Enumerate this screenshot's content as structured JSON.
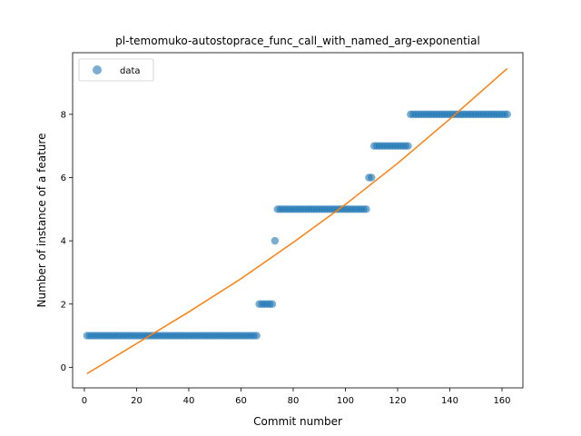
{
  "chart_data": {
    "type": "scatter",
    "title": "pl-temomuko-autostoprace_func_call_with_named_arg-exponential",
    "xlabel": "Commit number",
    "ylabel": "Number of instance of a feature",
    "xlim": [
      -4.5,
      168
    ],
    "ylim": [
      -0.65,
      9.95
    ],
    "xticks": [
      0,
      20,
      40,
      60,
      80,
      100,
      120,
      140,
      160
    ],
    "yticks": [
      0,
      2,
      4,
      6,
      8
    ],
    "grid": false,
    "legend_position": "top-left",
    "series": [
      {
        "name": "data",
        "kind": "points",
        "color": "#1f77b4",
        "segments": [
          {
            "x_start": 1,
            "x_end": 66,
            "y": 1
          },
          {
            "x_start": 67,
            "x_end": 72,
            "y": 2
          },
          {
            "x_start": 73,
            "x_end": 73,
            "y": 4
          },
          {
            "x_start": 74,
            "x_end": 108,
            "y": 5
          },
          {
            "x_start": 109,
            "x_end": 110,
            "y": 6
          },
          {
            "x_start": 111,
            "x_end": 124,
            "y": 7
          },
          {
            "x_start": 125,
            "x_end": 162,
            "y": 8
          }
        ]
      },
      {
        "kind": "fit-curve",
        "color": "#ff7f0e",
        "points": [
          [
            1,
            -0.2
          ],
          [
            20,
            0.75
          ],
          [
            40,
            1.75
          ],
          [
            60,
            2.8
          ],
          [
            80,
            3.95
          ],
          [
            100,
            5.15
          ],
          [
            120,
            6.45
          ],
          [
            140,
            7.85
          ],
          [
            162,
            9.45
          ]
        ]
      }
    ]
  }
}
